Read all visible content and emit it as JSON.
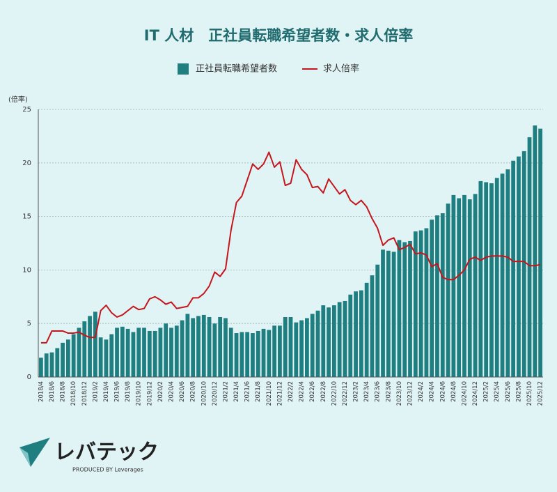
{
  "chart_data": {
    "type": "bar+line",
    "title": "IT 人材　正社員転職希望者数・求人倍率",
    "y_unit_label": "(倍率)",
    "categories": [
      "2018/4",
      null,
      "2018/6",
      null,
      "2018/8",
      null,
      "2018/10",
      null,
      "2018/12",
      null,
      "2019/2",
      null,
      "2019/4",
      null,
      "2019/6",
      null,
      "2019/8",
      null,
      "2019/10",
      null,
      "2019/12",
      null,
      "2020/2",
      null,
      "2020/4",
      null,
      "2020/6",
      null,
      "2020/8",
      null,
      "2020/10",
      null,
      "2020/12",
      null,
      "2021/2",
      null,
      "2021/4",
      null,
      "2021/6",
      null,
      "2021/8",
      null,
      "2021/10",
      null,
      "2021/12",
      null,
      "2022/2",
      null,
      "2022/4",
      null,
      "2022/6",
      null,
      "2022/8",
      null,
      "2022/10",
      null,
      "2022/12",
      null,
      "2023/2",
      null,
      "2023/4",
      null,
      "2023/6",
      null,
      "2023/8",
      null,
      "2023/10",
      null,
      "2023/12",
      null,
      "2024/2",
      null,
      "2024/4",
      null,
      "2024/6",
      null,
      "2024/8",
      null,
      "2024/10",
      null,
      "2024/12",
      null,
      "2025/2",
      null,
      "2025/4",
      null,
      "2025/6",
      null,
      "2025/8",
      null,
      "2025/10",
      null,
      "2025/12"
    ],
    "series": [
      {
        "name": "正社員転職希望者数",
        "type": "bar",
        "color": "#1f7f80",
        "values": [
          1.8,
          2.2,
          2.3,
          2.7,
          3.2,
          3.5,
          4.0,
          4.6,
          5.2,
          5.7,
          6.1,
          3.7,
          3.5,
          4.0,
          4.6,
          4.7,
          4.5,
          4.2,
          4.6,
          4.6,
          4.3,
          4.3,
          4.6,
          5.0,
          4.6,
          4.8,
          5.3,
          5.9,
          5.5,
          5.7,
          5.8,
          5.6,
          5.0,
          5.6,
          5.5,
          4.6,
          4.1,
          4.2,
          4.2,
          4.1,
          4.3,
          4.5,
          4.4,
          4.8,
          4.8,
          5.6,
          5.6,
          5.1,
          5.3,
          5.5,
          5.9,
          6.2,
          6.7,
          6.5,
          6.7,
          7.0,
          7.1,
          7.7,
          8.0,
          8.1,
          8.8,
          9.5,
          10.5,
          11.9,
          11.8,
          11.7,
          12.8,
          12.6,
          12.7,
          13.6,
          13.7,
          13.9,
          14.7,
          15.1,
          15.3,
          16.2,
          17.0,
          16.7,
          17.0,
          16.6,
          17.1,
          18.3,
          18.2,
          18.1,
          18.6,
          19.0,
          19.4,
          20.2,
          20.6,
          21.1,
          22.4,
          23.5,
          23.2
        ]
      },
      {
        "name": "求人倍率",
        "type": "line",
        "color": "#c4161c",
        "values": [
          3.2,
          3.2,
          4.3,
          4.3,
          4.3,
          4.1,
          4.1,
          4.2,
          3.9,
          3.7,
          3.7,
          6.2,
          6.7,
          6.0,
          5.6,
          5.8,
          6.2,
          6.6,
          6.3,
          6.4,
          7.3,
          7.5,
          7.2,
          6.8,
          7.0,
          6.4,
          6.5,
          6.6,
          7.4,
          7.4,
          7.8,
          8.5,
          9.8,
          9.4,
          10.1,
          13.7,
          16.3,
          16.9,
          18.4,
          19.9,
          19.4,
          19.9,
          21.0,
          19.6,
          20.1,
          17.9,
          18.1,
          20.3,
          19.4,
          18.9,
          17.7,
          17.8,
          17.2,
          18.5,
          17.8,
          17.1,
          17.5,
          16.5,
          16.1,
          16.5,
          15.9,
          14.8,
          13.9,
          12.3,
          12.8,
          13.0,
          11.9,
          12.1,
          12.4,
          11.5,
          11.6,
          11.4,
          10.3,
          10.6,
          9.3,
          9.1,
          9.1,
          9.5,
          10.0,
          11.0,
          11.2,
          10.9,
          11.2,
          11.3,
          11.3,
          11.3,
          11.2,
          10.8,
          10.8,
          10.8,
          10.4,
          10.4,
          10.5
        ]
      }
    ],
    "ylim": [
      0,
      25
    ],
    "yticks": [
      0,
      5,
      10,
      15,
      20,
      25
    ],
    "grid": true,
    "legend": "top"
  },
  "logo": {
    "name": "レバテック",
    "tagline": "PRODUCED BY Leverages"
  }
}
